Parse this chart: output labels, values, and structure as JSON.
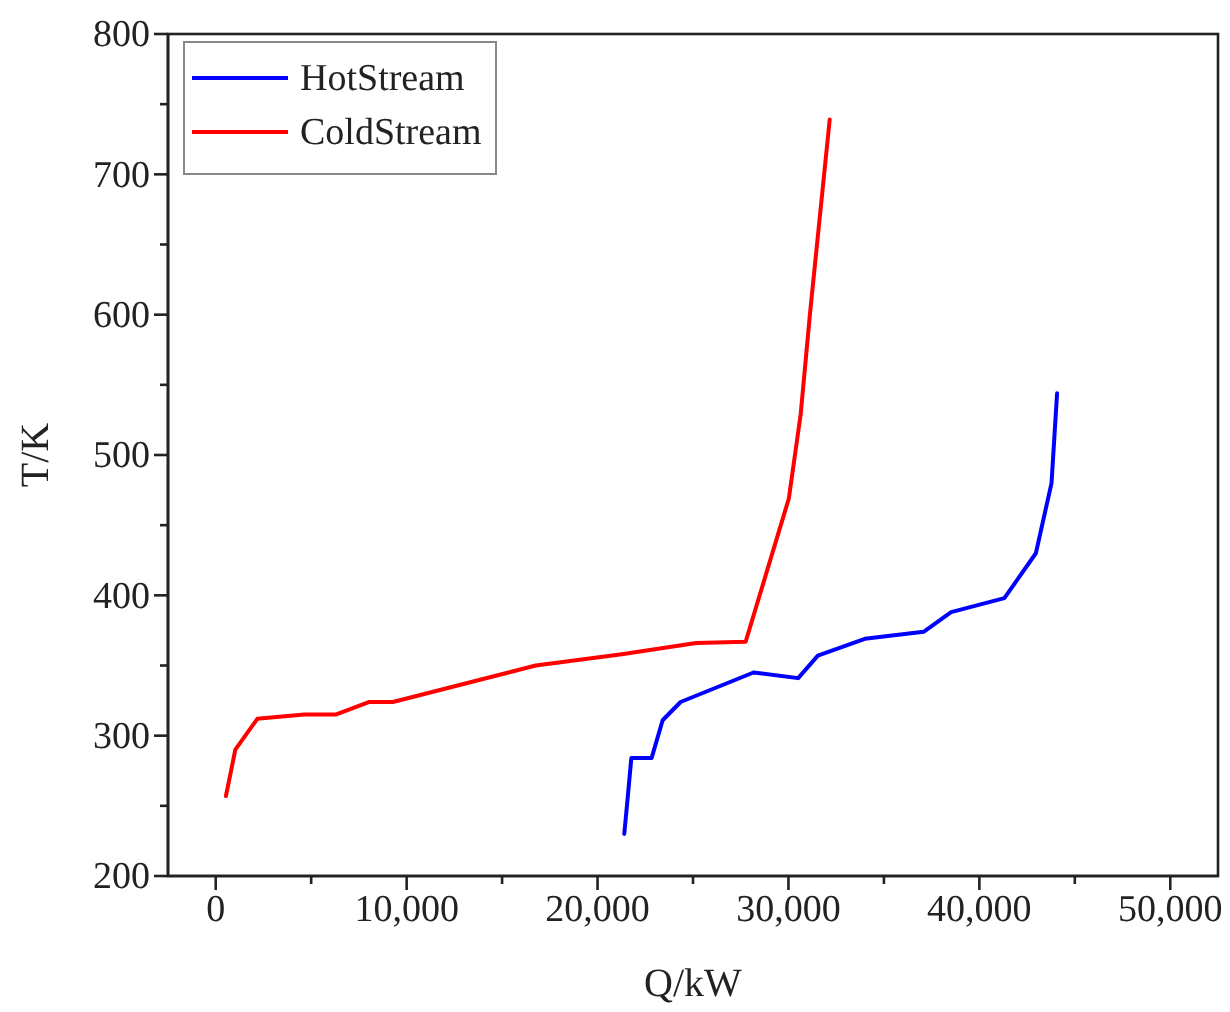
{
  "chart_data": {
    "type": "line",
    "xlabel": "Q/kW",
    "ylabel": "T/K",
    "xlim": [
      -2500,
      52500
    ],
    "ylim": [
      200,
      800
    ],
    "xticks": [
      0,
      {
        "value": 5000,
        "label": null
      },
      {
        "value": 10000,
        "label": "10,000"
      },
      {
        "value": 15000,
        "label": null
      },
      {
        "value": 20000,
        "label": "20,000"
      },
      {
        "value": 25000,
        "label": null
      },
      {
        "value": 30000,
        "label": "30,000"
      },
      {
        "value": 35000,
        "label": null
      },
      {
        "value": 40000,
        "label": "40,000"
      },
      {
        "value": 45000,
        "label": null
      },
      {
        "value": 50000,
        "label": "50,000"
      }
    ],
    "yticks": [
      200,
      {
        "value": 250,
        "label": null
      },
      300,
      {
        "value": 350,
        "label": null
      },
      400,
      {
        "value": 450,
        "label": null
      },
      500,
      {
        "value": 550,
        "label": null
      },
      600,
      {
        "value": 650,
        "label": null
      },
      700,
      {
        "value": 750,
        "label": null
      },
      800
    ],
    "grid": false,
    "legend": "top left",
    "marker": "none",
    "line_style": "solid",
    "series": [
      {
        "name": "HotStream",
        "color": "#0000ff",
        "x": [
          21400,
          21560,
          21770,
          22830,
          23410,
          24350,
          28170,
          30510,
          31540,
          34000,
          37080,
          38520,
          41310,
          42960,
          43780,
          44070
        ],
        "values": [
          230,
          253,
          284,
          284,
          311,
          324,
          345,
          341,
          357,
          369,
          374,
          388,
          398,
          430,
          480,
          544
        ]
      },
      {
        "name": "ColdStream",
        "color": "#ff0000",
        "x": [
          534,
          1027,
          2177,
          4640,
          6280,
          8050,
          9280,
          16760,
          21270,
          25170,
          27760,
          30020,
          30640,
          31130,
          32160
        ],
        "values": [
          257,
          290,
          312,
          315,
          315,
          324,
          324,
          350,
          358,
          366,
          367,
          469,
          529,
          601,
          739
        ]
      }
    ]
  }
}
